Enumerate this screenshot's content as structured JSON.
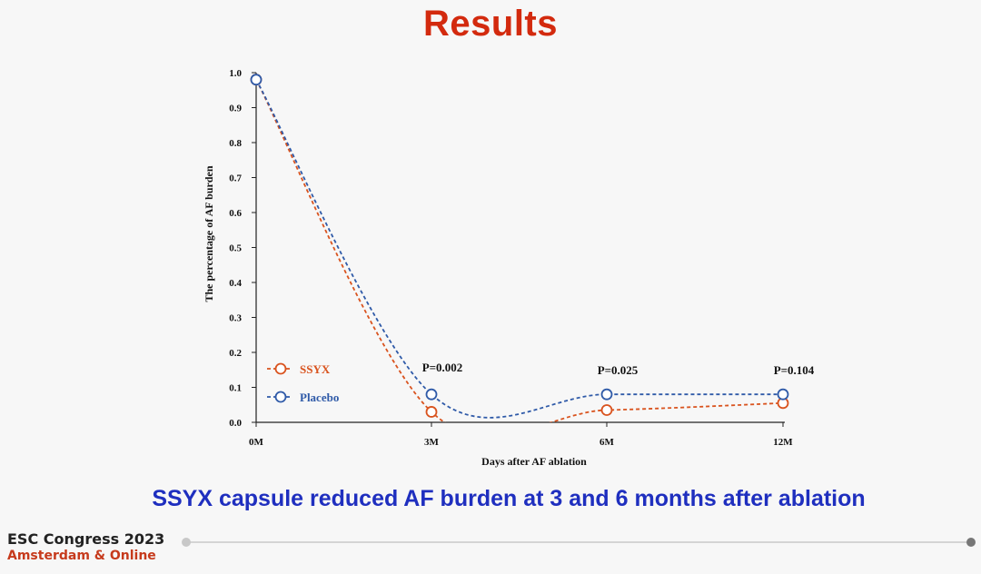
{
  "slide": {
    "title": "Results",
    "conclusion": "SSYX capsule reduced AF burden at 3 and 6 months after ablation"
  },
  "footer": {
    "line1": "ESC Congress 2023",
    "line2": "Amsterdam & Online"
  },
  "colors": {
    "title": "#d32a0e",
    "conclusion": "#1f2fbf",
    "ssyx": "#d9531e",
    "placebo": "#2f5aa8"
  },
  "chart_data": {
    "type": "line",
    "categories": [
      "0M",
      "3M",
      "6M",
      "12M"
    ],
    "xlabel": "Days after AF ablation",
    "ylabel": "The percentage of AF burden",
    "ylim": [
      0,
      1.0
    ],
    "yticks": [
      "0.0",
      "0.1",
      "0.2",
      "0.3",
      "0.4",
      "0.5",
      "0.6",
      "0.7",
      "0.8",
      "0.9",
      "1.0"
    ],
    "grid": false,
    "legend_position": "bottom-left",
    "series": [
      {
        "name": "SSYX",
        "color": "#d9531e",
        "values": [
          0.98,
          0.03,
          0.035,
          0.055
        ]
      },
      {
        "name": "Placebo",
        "color": "#2f5aa8",
        "values": [
          0.98,
          0.08,
          0.08,
          0.08
        ]
      }
    ],
    "annotations": [
      {
        "category": "3M",
        "text": "P=0.002"
      },
      {
        "category": "6M",
        "text": "P=0.025"
      },
      {
        "category": "12M",
        "text": "P=0.104"
      }
    ]
  }
}
